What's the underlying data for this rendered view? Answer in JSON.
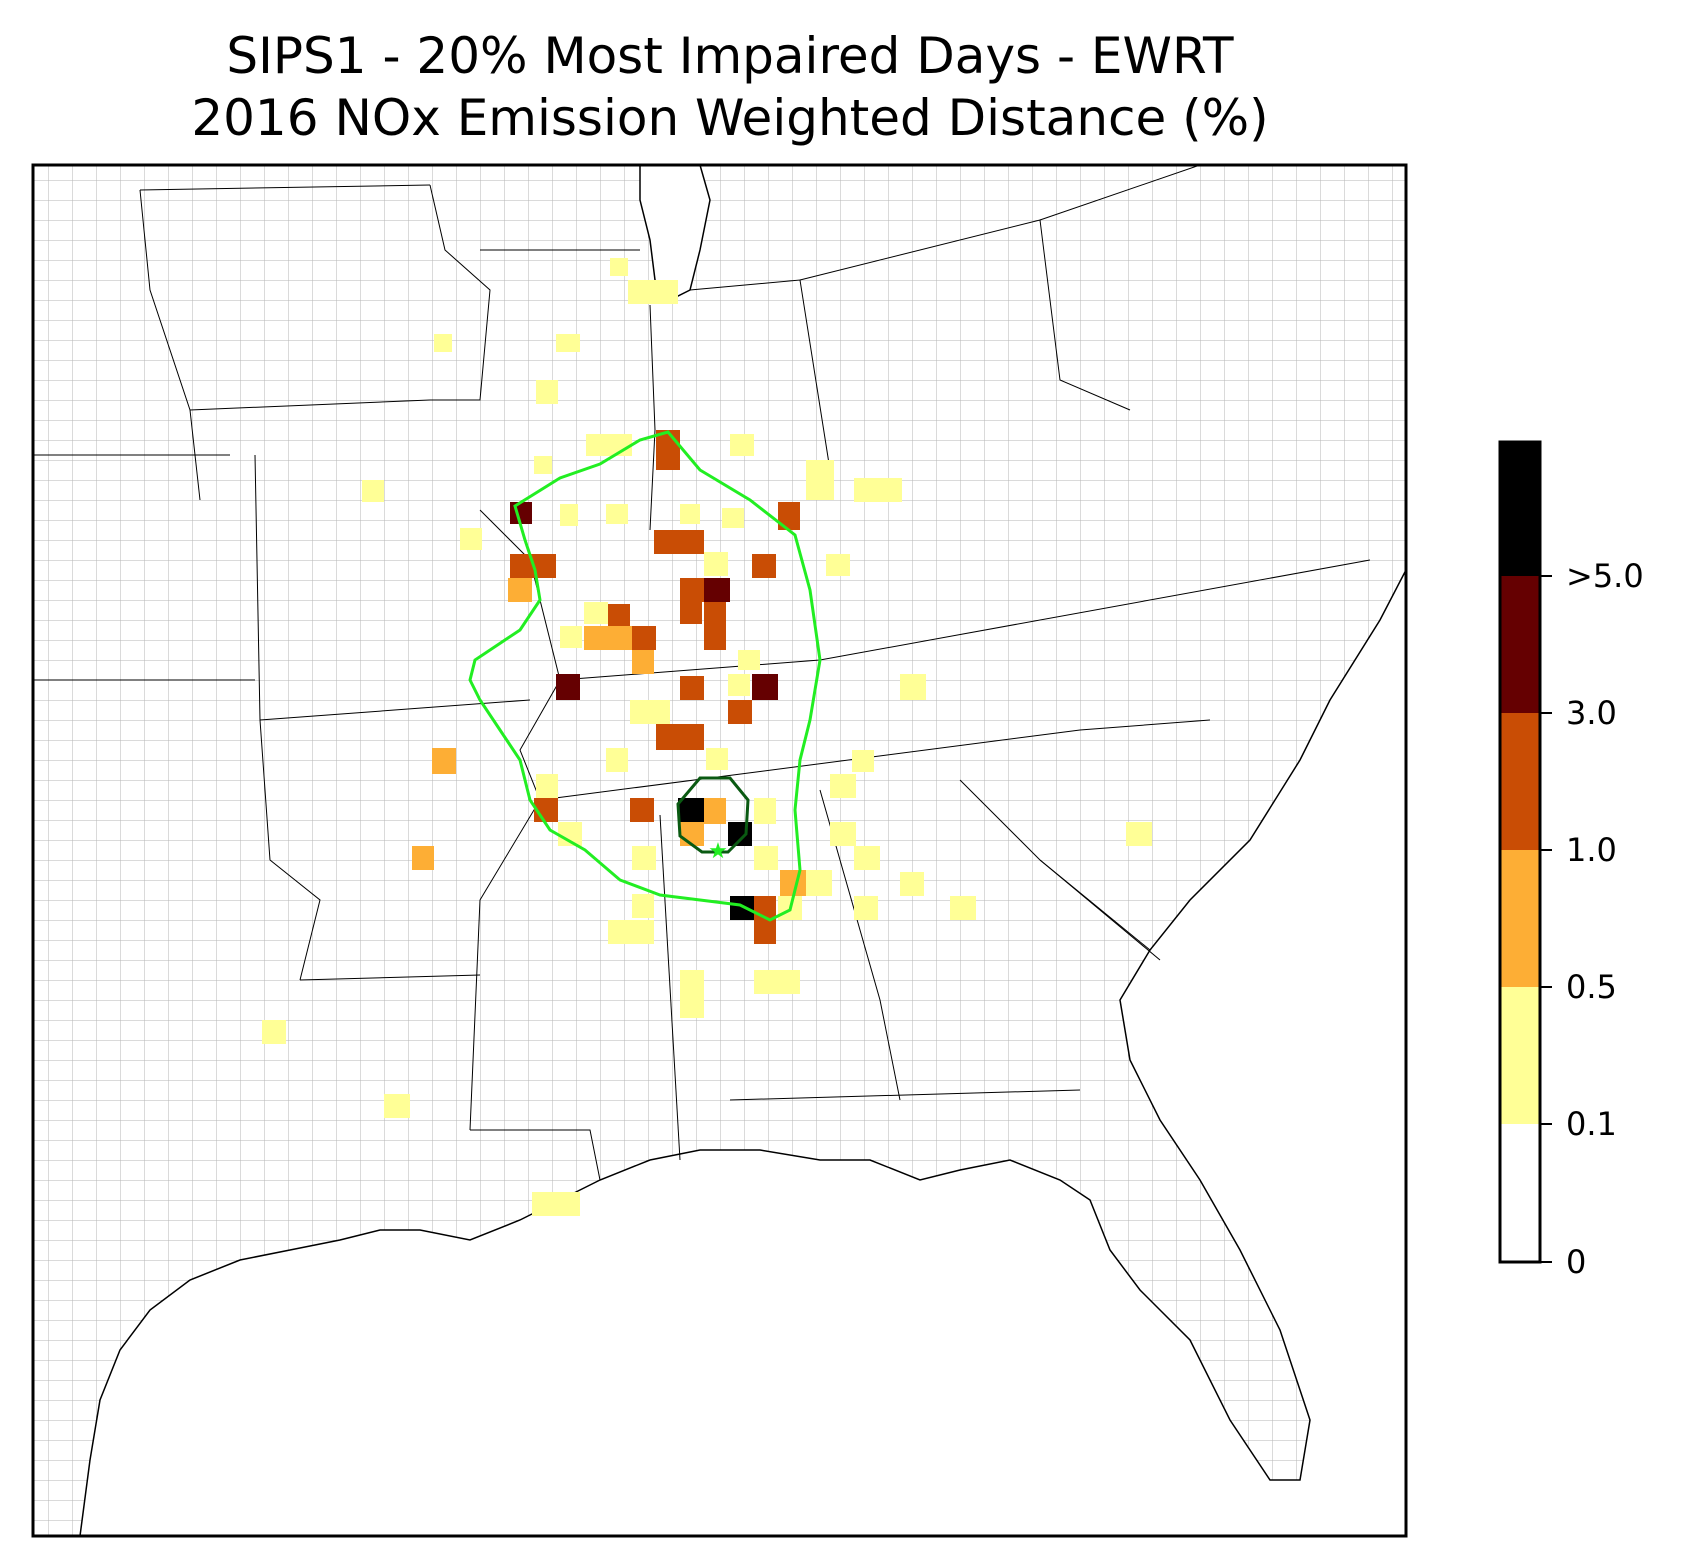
{
  "title": {
    "line1": "SIPS1 - 20% Most Impaired Days - EWRT",
    "line2": "2016 NOx Emission Weighted Distance (%)"
  },
  "colorbar": {
    "bins": [
      {
        "label": "0",
        "color": "#ffffff"
      },
      {
        "label": "0.1",
        "color": "#ffff96"
      },
      {
        "label": "0.5",
        "color": "#fdae35"
      },
      {
        "label": "1.0",
        "color": "#c94d05"
      },
      {
        "label": "3.0",
        "color": "#650001"
      },
      {
        "label": ">5.0",
        "color": "#000000"
      }
    ]
  },
  "map": {
    "region": "Eastern and southeastern United States",
    "receptor_marker_color": "#22ee22",
    "outer_contour_color": "#22ee22",
    "inner_contour_color": "#0a5a12"
  }
}
